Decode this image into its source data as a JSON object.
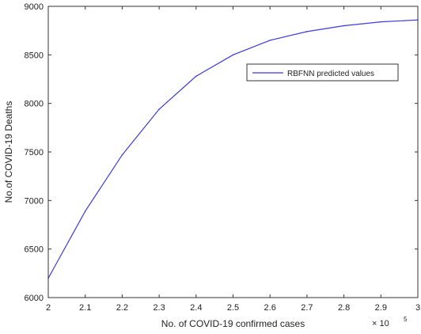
{
  "chart_data": {
    "type": "line",
    "xlabel": "No. of COVID-19 confirmed cases",
    "ylabel": "No.of COVID-19 Deaths",
    "x_multiplier": "× 10",
    "x_multiplier_exp": "5",
    "xlim": [
      2,
      3
    ],
    "ylim": [
      6000,
      9000
    ],
    "x_ticks": [
      "2",
      "2.1",
      "2.2",
      "2.3",
      "2.4",
      "2.5",
      "2.6",
      "2.7",
      "2.8",
      "2.9",
      "3"
    ],
    "y_ticks": [
      "6000",
      "6500",
      "7000",
      "7500",
      "8000",
      "8500",
      "9000"
    ],
    "grid": false,
    "legend_position": "upper-right",
    "series": [
      {
        "name": "RBFNN predicted values",
        "color": "#3a3adf",
        "x": [
          2.0,
          2.1,
          2.2,
          2.3,
          2.4,
          2.5,
          2.6,
          2.7,
          2.8,
          2.9,
          3.0
        ],
        "y": [
          6200,
          6890,
          7470,
          7940,
          8280,
          8500,
          8650,
          8740,
          8800,
          8840,
          8860
        ]
      }
    ]
  }
}
